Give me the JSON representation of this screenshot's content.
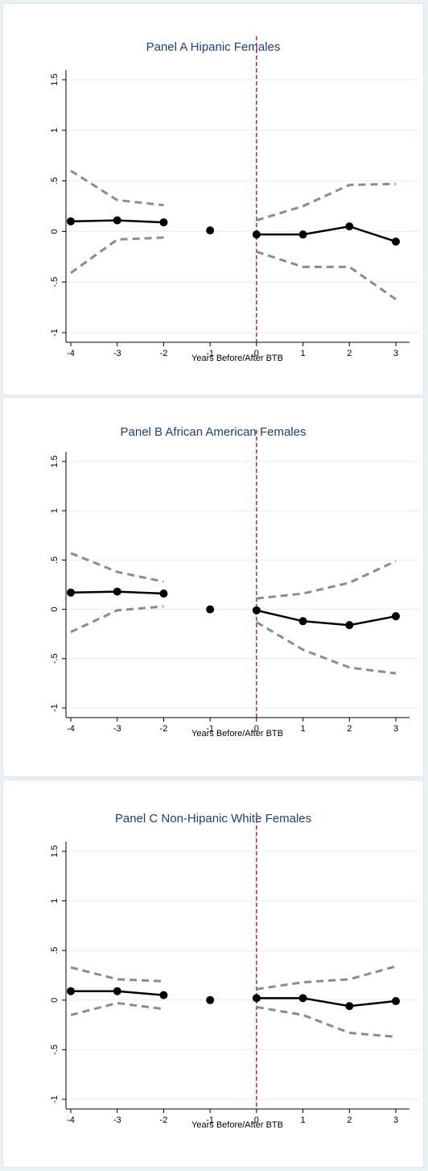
{
  "chart_data": [
    {
      "type": "line",
      "title": "Panel A    Hipanic Females",
      "xlabel": "Years Before/After BTB",
      "ylabel": "",
      "x": [
        -4,
        -3,
        -2,
        -1,
        0,
        1,
        2,
        3
      ],
      "xlim": [
        -4,
        3
      ],
      "ylim": [
        -1,
        1.5
      ],
      "yticks": [
        "-1",
        "-.5",
        "0",
        ".5",
        "1",
        "1.5"
      ],
      "xticks": [
        "-4",
        "-3",
        "-2",
        "-1",
        "0",
        "1",
        "2",
        "3"
      ],
      "reference_line_x": 0,
      "grid": true,
      "series": [
        {
          "role": "estimate",
          "values": [
            0.1,
            0.11,
            0.09,
            0.01,
            -0.03,
            -0.03,
            0.05,
            -0.1
          ]
        },
        {
          "role": "upper",
          "values": [
            0.6,
            0.31,
            0.26,
            null,
            0.11,
            0.25,
            0.46,
            0.47
          ]
        },
        {
          "role": "lower",
          "values": [
            -0.41,
            -0.08,
            -0.06,
            null,
            -0.2,
            -0.35,
            -0.35,
            -0.67
          ]
        }
      ]
    },
    {
      "type": "line",
      "title": "Panel B    African American Females",
      "xlabel": "Years Before/After BTB",
      "ylabel": "",
      "x": [
        -4,
        -3,
        -2,
        -1,
        0,
        1,
        2,
        3
      ],
      "xlim": [
        -4,
        3
      ],
      "ylim": [
        -1,
        1.5
      ],
      "yticks": [
        "-1",
        "-.5",
        "0",
        ".5",
        "1",
        "1.5"
      ],
      "xticks": [
        "-4",
        "-3",
        "-2",
        "-1",
        "0",
        "1",
        "2",
        "3"
      ],
      "reference_line_x": 0,
      "grid": true,
      "series": [
        {
          "role": "estimate",
          "values": [
            0.17,
            0.18,
            0.16,
            0.0,
            -0.01,
            -0.12,
            -0.16,
            -0.07
          ]
        },
        {
          "role": "upper",
          "values": [
            0.57,
            0.38,
            0.28,
            null,
            0.11,
            0.16,
            0.27,
            0.49
          ]
        },
        {
          "role": "lower",
          "values": [
            -0.23,
            -0.01,
            0.03,
            null,
            -0.13,
            -0.41,
            -0.59,
            -0.65
          ]
        }
      ]
    },
    {
      "type": "line",
      "title": "Panel C    Non-Hipanic White Females",
      "xlabel": "Years Before/After BTB",
      "ylabel": "",
      "x": [
        -4,
        -3,
        -2,
        -1,
        0,
        1,
        2,
        3
      ],
      "xlim": [
        -4,
        3
      ],
      "ylim": [
        -1,
        1.5
      ],
      "yticks": [
        "-1",
        "-.5",
        "0",
        ".5",
        "1",
        "1.5"
      ],
      "xticks": [
        "-4",
        "-3",
        "-2",
        "-1",
        "0",
        "1",
        "2",
        "3"
      ],
      "reference_line_x": 0,
      "grid": true,
      "series": [
        {
          "role": "estimate",
          "values": [
            0.09,
            0.09,
            0.05,
            0.0,
            0.02,
            0.02,
            -0.06,
            -0.01
          ]
        },
        {
          "role": "upper",
          "values": [
            0.33,
            0.21,
            0.19,
            null,
            0.11,
            0.18,
            0.21,
            0.34
          ]
        },
        {
          "role": "lower",
          "values": [
            -0.15,
            -0.03,
            -0.09,
            null,
            -0.07,
            -0.15,
            -0.33,
            -0.37
          ]
        }
      ]
    }
  ],
  "colors": {
    "estimate": "#000000",
    "ci": "#8c8c8c",
    "reference_line": "#a5203a",
    "title": "#1f3f7a",
    "gridline": "#e6eef0"
  }
}
